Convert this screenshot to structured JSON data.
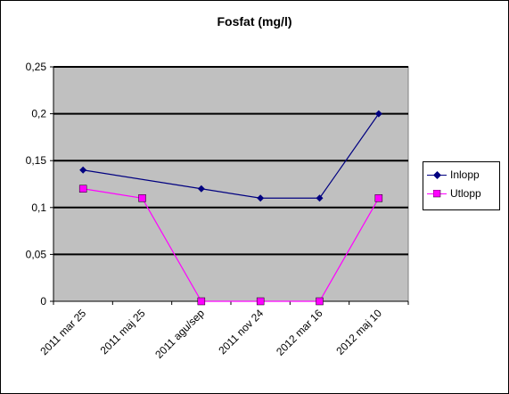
{
  "chart_data": {
    "type": "line",
    "title": "Fosfat (mg/l)",
    "xlabel": "",
    "ylabel": "",
    "categories": [
      "2011 mar 25",
      "2011 maj 25",
      "2011 agu/sep",
      "2011 nov 24",
      "2012 mar 16",
      "2012 maj 10"
    ],
    "ylim": [
      0,
      0.25
    ],
    "yticks": [
      "0",
      "0,05",
      "0,1",
      "0,15",
      "0,2",
      "0,25"
    ],
    "ytick_values": [
      0,
      0.05,
      0.1,
      0.15,
      0.2,
      0.25
    ],
    "grid": true,
    "legend_position": "right",
    "plot_background": "#c0c0c0",
    "series": [
      {
        "name": "Inlopp",
        "color": "#000080",
        "marker": "diamond",
        "values": [
          0.14,
          null,
          0.12,
          0.11,
          0.11,
          0.2
        ]
      },
      {
        "name": "Utlopp",
        "color": "#ff00ff",
        "marker": "square",
        "values": [
          0.12,
          0.11,
          0,
          0,
          0,
          0.11
        ]
      }
    ]
  }
}
